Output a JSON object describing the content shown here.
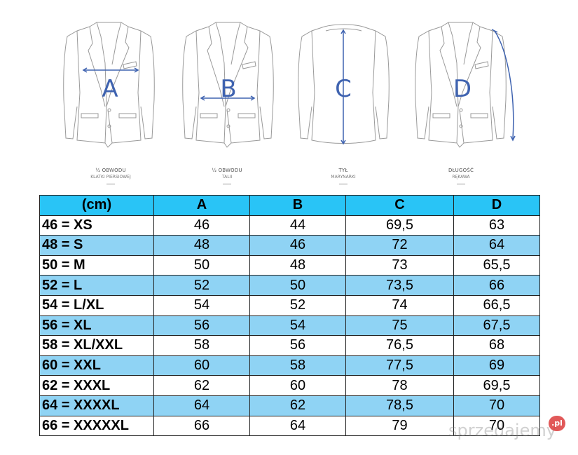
{
  "diagram": {
    "letters": [
      "A",
      "B",
      "C",
      "D"
    ],
    "captions": [
      {
        "line1": "½ OBWODU",
        "line2": "KLATKI PIERSIOWEJ"
      },
      {
        "line1": "½ OBWODU",
        "line2": "TALII"
      },
      {
        "line1": "TYŁ",
        "line2": "MARYNARKI"
      },
      {
        "line1": "DŁUGOŚĆ",
        "line2": "RĘKAWA"
      }
    ],
    "accent_color": "#3f63b0"
  },
  "table": {
    "headers": [
      "(cm)",
      "A",
      "B",
      "C",
      "D"
    ],
    "rows": [
      [
        "46 = XS",
        "46",
        "44",
        "69,5",
        "63"
      ],
      [
        "48 = S",
        "48",
        "46",
        "72",
        "64"
      ],
      [
        "50 = M",
        "50",
        "48",
        "73",
        "65,5"
      ],
      [
        "52 = L",
        "52",
        "50",
        "73,5",
        "66"
      ],
      [
        "54 = L/XL",
        "54",
        "52",
        "74",
        "66,5"
      ],
      [
        "56 = XL",
        "56",
        "54",
        "75",
        "67,5"
      ],
      [
        "58 = XL/XXL",
        "58",
        "56",
        "76,5",
        "68"
      ],
      [
        "60 = XXL",
        "60",
        "58",
        "77,5",
        "69"
      ],
      [
        "62 = XXXL",
        "62",
        "60",
        "78",
        "69,5"
      ],
      [
        "64 = XXXXL",
        "64",
        "62",
        "78,5",
        "70"
      ],
      [
        "66 = XXXXXL",
        "66",
        "64",
        "79",
        "70"
      ]
    ],
    "header_color": "#29c4f6",
    "alt_row_color": "#8fd3f4"
  },
  "watermark": {
    "text": "sprzedajemy",
    "badge": ".pl"
  }
}
